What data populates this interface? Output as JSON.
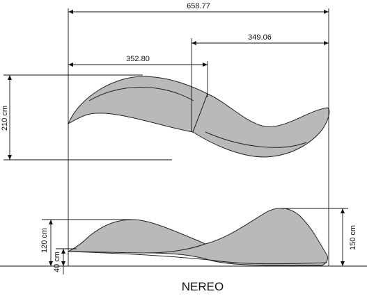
{
  "drawing": {
    "caption": "NEREO",
    "dimensions": {
      "overall_width": "658.77",
      "right_section": "349.06",
      "left_section": "352.80",
      "plan_depth": "210 cm",
      "height_left": "120 cm",
      "seat_height": "40 cm",
      "height_right": "150 cm"
    },
    "colors": {
      "fill": "#b9b9b9",
      "stroke": "#222222"
    }
  }
}
